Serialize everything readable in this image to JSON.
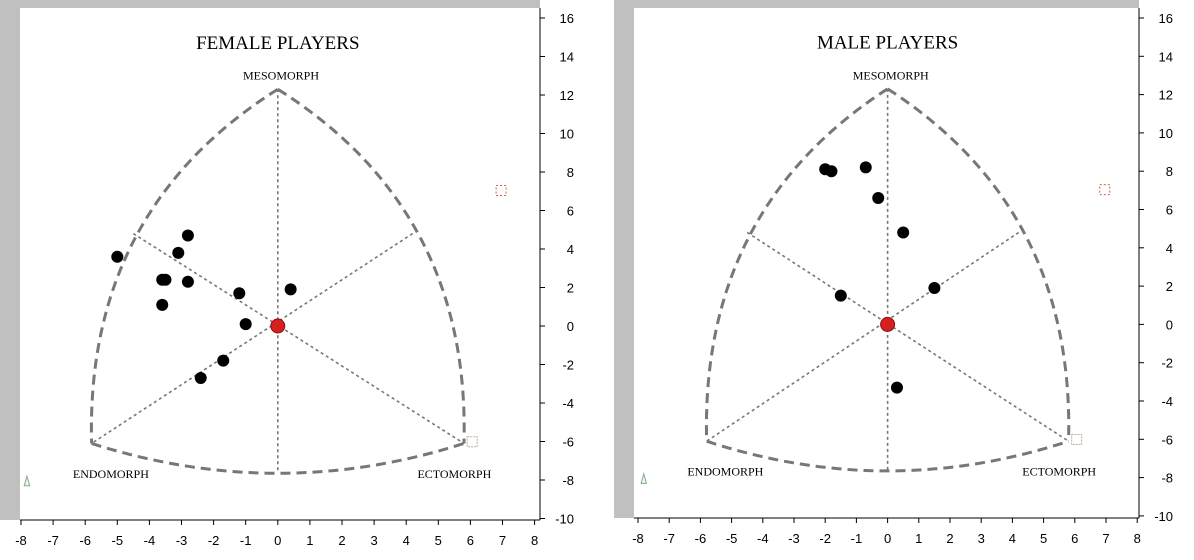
{
  "chart_data": [
    {
      "type": "scatter",
      "title": "FEMALE PLAYERS",
      "vertex_labels": {
        "top": "MESOMORPH",
        "left": "ENDOMORPH",
        "right": "ECTOMORPH"
      },
      "xlim": [
        -8,
        8
      ],
      "ylim": [
        -10,
        16
      ],
      "xticks": [
        "-8",
        "-7",
        "-6",
        "-5",
        "-4",
        "-3",
        "-2",
        "-1",
        "0",
        "1",
        "2",
        "3",
        "4",
        "5",
        "6",
        "7",
        "8"
      ],
      "yticks": [
        "16",
        "14",
        "12",
        "10",
        "8",
        "6",
        "4",
        "2",
        "0",
        "-2",
        "-4",
        "-6",
        "-8",
        "-10"
      ],
      "grid": false,
      "points": [
        {
          "x": -5.0,
          "y": 3.6
        },
        {
          "x": -3.6,
          "y": 2.4
        },
        {
          "x": -3.5,
          "y": 2.4
        },
        {
          "x": -3.6,
          "y": 1.1
        },
        {
          "x": -3.1,
          "y": 3.8
        },
        {
          "x": -2.8,
          "y": 4.7
        },
        {
          "x": -2.8,
          "y": 2.3
        },
        {
          "x": -1.2,
          "y": 1.7
        },
        {
          "x": -1.0,
          "y": 0.1
        },
        {
          "x": 0.4,
          "y": 1.9
        },
        {
          "x": -1.7,
          "y": -1.8
        },
        {
          "x": -2.4,
          "y": -2.7
        }
      ],
      "centroid": {
        "x": 0,
        "y": 0
      }
    },
    {
      "type": "scatter",
      "title": "MALE PLAYERS",
      "vertex_labels": {
        "top": "MESOMORPH",
        "left": "ENDOMORPH",
        "right": "ECTOMORPH"
      },
      "xlim": [
        -8,
        8
      ],
      "ylim": [
        -10,
        16
      ],
      "xticks": [
        "-8",
        "-7",
        "-6",
        "-5",
        "-4",
        "-3",
        "-2",
        "-1",
        "0",
        "1",
        "2",
        "3",
        "4",
        "5",
        "6",
        "7",
        "8"
      ],
      "yticks": [
        "16",
        "14",
        "12",
        "10",
        "8",
        "6",
        "4",
        "2",
        "0",
        "-2",
        "-4",
        "-6",
        "-8",
        "-10"
      ],
      "grid": false,
      "points": [
        {
          "x": -2.0,
          "y": 8.1
        },
        {
          "x": -1.8,
          "y": 8.0
        },
        {
          "x": -0.7,
          "y": 8.2
        },
        {
          "x": -0.3,
          "y": 6.6
        },
        {
          "x": 0.5,
          "y": 4.8
        },
        {
          "x": -1.5,
          "y": 1.5
        },
        {
          "x": 1.5,
          "y": 1.9
        },
        {
          "x": 0.3,
          "y": -3.3
        }
      ],
      "centroid": {
        "x": 0,
        "y": 0
      }
    }
  ]
}
